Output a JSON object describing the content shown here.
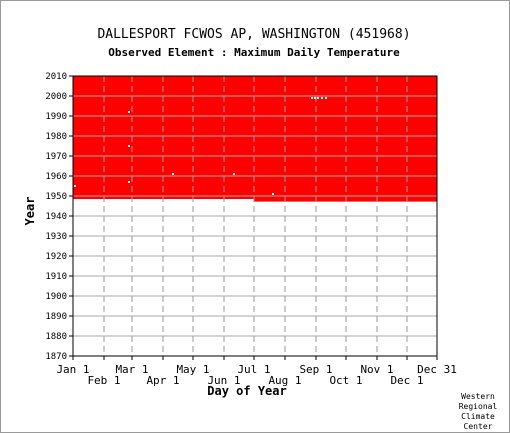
{
  "chart_data": {
    "type": "heatmap",
    "title": "DALLESPORT FCWOS AP, WASHINGTON   (451968)",
    "subtitle": "Observed Element : Maximum Daily Temperature",
    "xlabel": "Day of Year",
    "ylabel": "Year",
    "ylim": [
      1870,
      2010
    ],
    "xlim": [
      1,
      365
    ],
    "grid": true,
    "y_ticks": [
      1870,
      1880,
      1890,
      1900,
      1910,
      1920,
      1930,
      1940,
      1950,
      1960,
      1970,
      1980,
      1990,
      2000,
      2010
    ],
    "x_ticks": [
      {
        "label": "Jan 1",
        "day": 1,
        "row": 1
      },
      {
        "label": "Feb 1",
        "day": 32,
        "row": 2
      },
      {
        "label": "Mar 1",
        "day": 60,
        "row": 1
      },
      {
        "label": "Apr 1",
        "day": 91,
        "row": 2
      },
      {
        "label": "May 1",
        "day": 121,
        "row": 1
      },
      {
        "label": "Jun 1",
        "day": 152,
        "row": 2
      },
      {
        "label": "Jul 1",
        "day": 182,
        "row": 1
      },
      {
        "label": "Aug 1",
        "day": 213,
        "row": 2
      },
      {
        "label": "Sep 1",
        "day": 244,
        "row": 1
      },
      {
        "label": "Oct 1",
        "day": 274,
        "row": 2
      },
      {
        "label": "Nov 1",
        "day": 305,
        "row": 1
      },
      {
        "label": "Dec 1",
        "day": 335,
        "row": 2
      },
      {
        "label": "Dec 31",
        "day": 365,
        "row": 1
      }
    ],
    "data_color": "#ff0000",
    "observed_coverage": [
      {
        "start_day": 1,
        "end_day": 182,
        "start_year": 1948.5,
        "end_year": 2010
      },
      {
        "start_day": 182,
        "end_day": 365,
        "start_year": 1947.2,
        "end_year": 2010
      }
    ],
    "missing_points": [
      {
        "day": 3,
        "year": 1955
      },
      {
        "day": 57,
        "year": 1992
      },
      {
        "day": 57,
        "year": 1975
      },
      {
        "day": 57,
        "year": 1957
      },
      {
        "day": 101,
        "year": 1961
      },
      {
        "day": 162,
        "year": 1961
      },
      {
        "day": 201,
        "year": 1951
      },
      {
        "day": 240,
        "year": 1999
      },
      {
        "day": 243,
        "year": 1999
      },
      {
        "day": 246,
        "year": 1999
      },
      {
        "day": 250,
        "year": 1999
      },
      {
        "day": 254,
        "year": 1999
      }
    ]
  },
  "credit": [
    "Western",
    "Regional",
    "Climate",
    "Center"
  ]
}
